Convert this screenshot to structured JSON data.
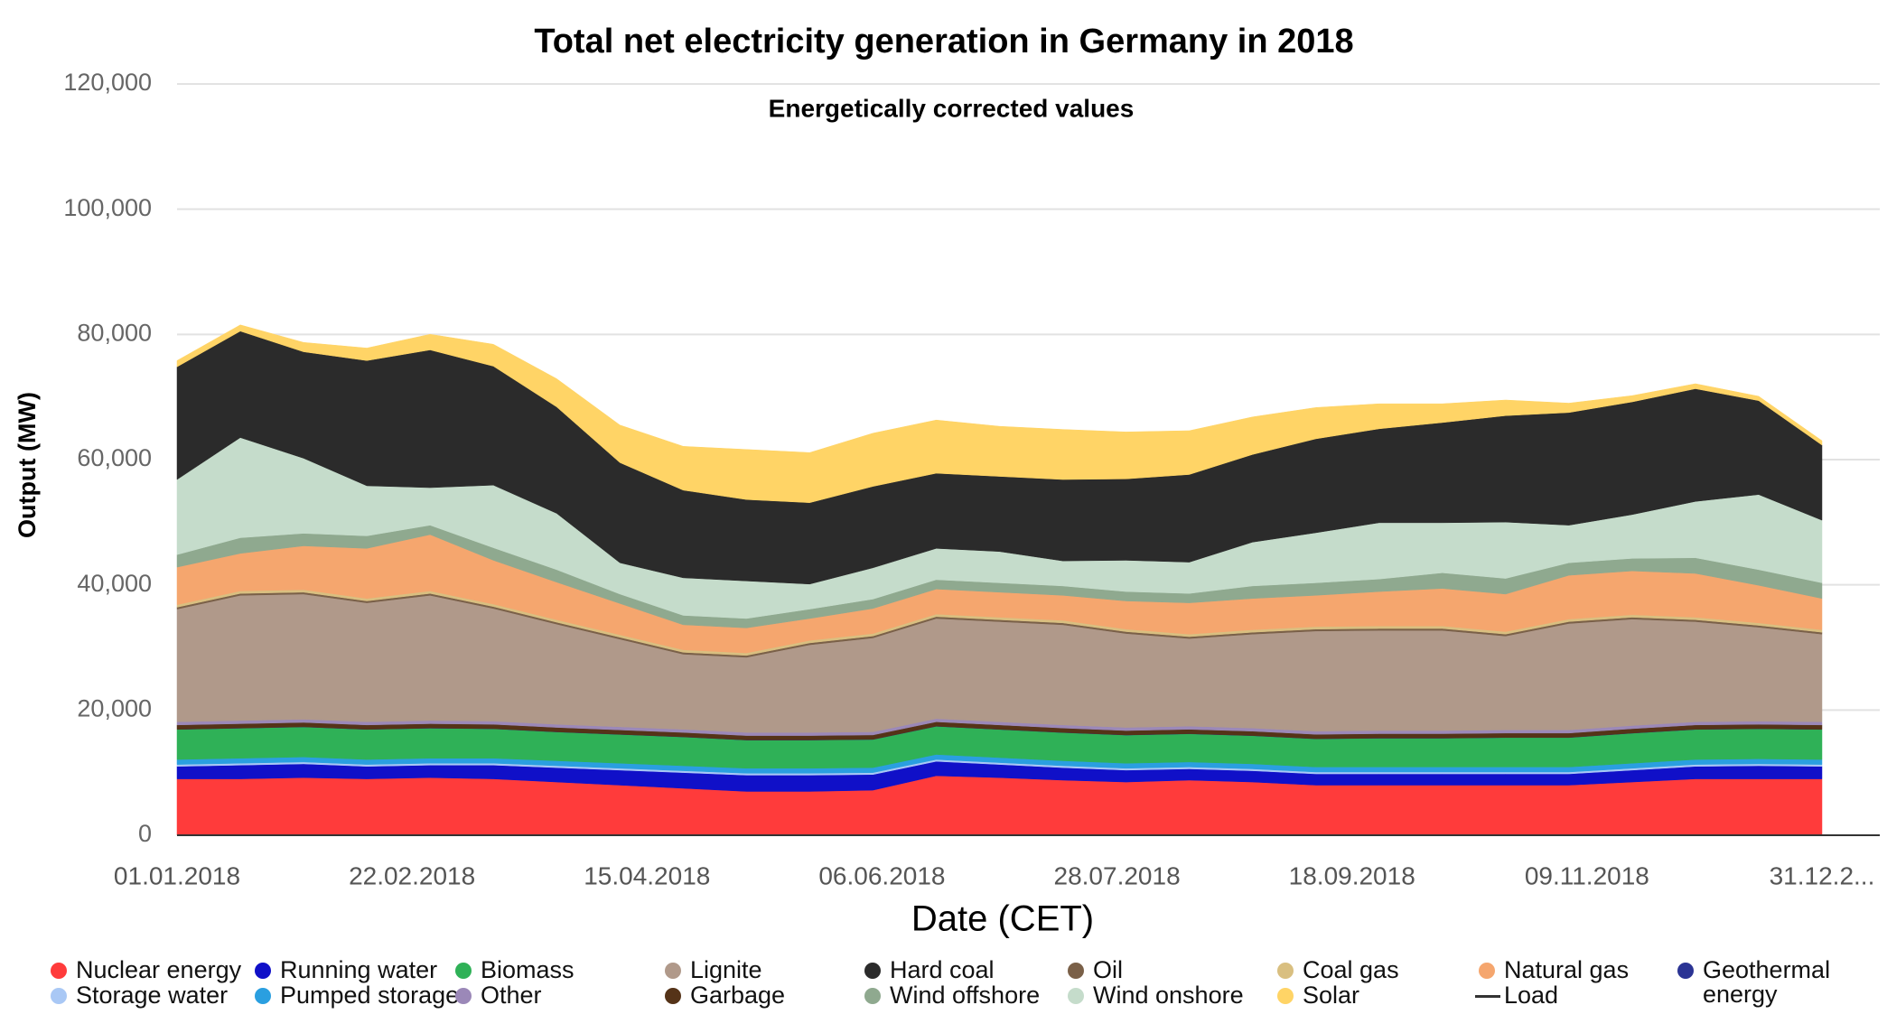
{
  "chart_data": {
    "type": "stacked_area",
    "title": "Total net electricity generation in Germany in 2018",
    "subtitle": "Energetically corrected values",
    "x_label": "Date (CET)",
    "y_label": "Output (MW)",
    "x": [
      "01.01.2018",
      "15.01.2018",
      "29.01.2018",
      "12.02.2018",
      "26.02.2018",
      "12.03.2018",
      "26.03.2018",
      "09.04.2018",
      "23.04.2018",
      "07.05.2018",
      "21.05.2018",
      "04.06.2018",
      "18.06.2018",
      "02.07.2018",
      "16.07.2018",
      "30.07.2018",
      "13.08.2018",
      "27.08.2018",
      "10.09.2018",
      "24.09.2018",
      "08.10.2018",
      "22.10.2018",
      "05.11.2018",
      "19.11.2018",
      "03.12.2018",
      "17.12.2018",
      "31.12.2018"
    ],
    "xlim": [
      "01.01.2018",
      "31.12.2018"
    ],
    "xticks": [
      "01.01.2018",
      "22.02.2018",
      "15.04.2018",
      "06.06.2018",
      "28.07.2018",
      "18.09.2018",
      "09.11.2018",
      {
        "value": "31.12.2018",
        "label": "31.12.2..."
      }
    ],
    "ylim": [
      0,
      120000
    ],
    "yticks": [
      {
        "value": 0,
        "label": "0"
      },
      {
        "value": 20000,
        "label": "20,000"
      },
      {
        "value": 40000,
        "label": "40,000"
      },
      {
        "value": 60000,
        "label": "60,000"
      },
      {
        "value": 80000,
        "label": "80,000"
      },
      {
        "value": 100000,
        "label": "100,000"
      },
      {
        "value": 120000,
        "label": "120,000"
      }
    ],
    "grid": true,
    "series": [
      {
        "name": "Nuclear energy",
        "color": "#ff3b3b",
        "values": [
          9000,
          9000,
          9200,
          9000,
          9200,
          9000,
          8500,
          8000,
          7500,
          7000,
          7000,
          7200,
          9500,
          9200,
          8800,
          8500,
          8800,
          8500,
          8000,
          8000,
          8000,
          8000,
          8000,
          8500,
          9000,
          9000,
          9000
        ]
      },
      {
        "name": "Running water",
        "color": "#1010c8",
        "values": [
          2000,
          2200,
          2200,
          2000,
          2000,
          2200,
          2300,
          2400,
          2500,
          2600,
          2600,
          2500,
          2300,
          2100,
          2000,
          1900,
          1800,
          1800,
          1800,
          1800,
          1800,
          1800,
          1800,
          1900,
          2000,
          2100,
          2000
        ]
      },
      {
        "name": "Storage water",
        "color": "#a9c8f5",
        "values": [
          300,
          300,
          300,
          300,
          300,
          300,
          300,
          300,
          300,
          300,
          300,
          300,
          300,
          300,
          300,
          300,
          300,
          300,
          300,
          300,
          300,
          300,
          300,
          300,
          300,
          300,
          300
        ]
      },
      {
        "name": "Pumped storage",
        "color": "#2a9fe0",
        "values": [
          800,
          800,
          800,
          800,
          800,
          800,
          800,
          800,
          800,
          800,
          800,
          800,
          800,
          800,
          800,
          800,
          800,
          800,
          800,
          800,
          800,
          800,
          800,
          800,
          800,
          800,
          800
        ]
      },
      {
        "name": "Biomass",
        "color": "#2fb157",
        "values": [
          4800,
          4800,
          4800,
          4800,
          4800,
          4700,
          4600,
          4600,
          4600,
          4500,
          4500,
          4500,
          4500,
          4500,
          4500,
          4500,
          4500,
          4500,
          4500,
          4600,
          4600,
          4700,
          4700,
          4800,
          4800,
          4800,
          4800
        ]
      },
      {
        "name": "Geothermal energy",
        "color": "#2b3494",
        "values": [
          20,
          20,
          20,
          20,
          20,
          20,
          20,
          20,
          20,
          20,
          20,
          20,
          20,
          20,
          20,
          20,
          20,
          20,
          20,
          20,
          20,
          20,
          20,
          20,
          20,
          20,
          20
        ]
      },
      {
        "name": "Garbage",
        "color": "#553318",
        "values": [
          700,
          700,
          700,
          700,
          700,
          700,
          700,
          700,
          700,
          700,
          700,
          700,
          700,
          700,
          700,
          700,
          700,
          700,
          700,
          700,
          700,
          700,
          700,
          700,
          700,
          700,
          700
        ]
      },
      {
        "name": "Other",
        "color": "#9b88b8",
        "values": [
          500,
          500,
          500,
          500,
          500,
          500,
          500,
          500,
          500,
          500,
          500,
          500,
          500,
          500,
          500,
          500,
          500,
          500,
          500,
          500,
          500,
          500,
          500,
          500,
          500,
          500,
          500
        ]
      },
      {
        "name": "Lignite",
        "color": "#b0998a",
        "values": [
          18000,
          20000,
          20000,
          19000,
          20000,
          18000,
          16000,
          14000,
          12000,
          12000,
          14000,
          15000,
          16000,
          16000,
          16000,
          15000,
          14000,
          15000,
          16000,
          16000,
          16000,
          15000,
          17000,
          17000,
          16000,
          15000,
          14000
        ]
      },
      {
        "name": "Oil",
        "color": "#7a6048",
        "values": [
          300,
          300,
          300,
          300,
          300,
          300,
          300,
          300,
          300,
          300,
          300,
          300,
          300,
          300,
          300,
          300,
          300,
          300,
          300,
          300,
          300,
          300,
          300,
          300,
          300,
          300,
          300
        ]
      },
      {
        "name": "Coal gas",
        "color": "#d9bf80",
        "values": [
          400,
          400,
          400,
          400,
          400,
          400,
          400,
          400,
          400,
          400,
          400,
          400,
          400,
          400,
          400,
          400,
          400,
          400,
          400,
          400,
          400,
          400,
          400,
          400,
          400,
          400,
          400
        ]
      },
      {
        "name": "Natural gas",
        "color": "#f5a66e",
        "values": [
          6000,
          6000,
          7000,
          8000,
          9000,
          7000,
          6000,
          5000,
          4000,
          4000,
          3500,
          4000,
          4000,
          4000,
          4000,
          4500,
          5000,
          5000,
          5000,
          5500,
          6000,
          6000,
          7000,
          7000,
          7000,
          6000,
          5000
        ]
      },
      {
        "name": "Wind offshore",
        "color": "#8fa98f",
        "values": [
          2000,
          2500,
          2000,
          2000,
          1500,
          2000,
          2000,
          1500,
          1500,
          1500,
          1500,
          1500,
          1500,
          1500,
          1500,
          1500,
          1500,
          2000,
          2000,
          2000,
          2500,
          2500,
          2000,
          2000,
          2500,
          2500,
          2500
        ]
      },
      {
        "name": "Wind onshore",
        "color": "#c5dccb",
        "values": [
          12000,
          16000,
          12000,
          8000,
          6000,
          10000,
          9000,
          5000,
          6000,
          6000,
          4000,
          5000,
          5000,
          5000,
          4000,
          5000,
          5000,
          7000,
          8000,
          9000,
          8000,
          9000,
          6000,
          7000,
          9000,
          12000,
          10000
        ]
      },
      {
        "name": "Hard coal",
        "color": "#2b2b2b",
        "values": [
          18000,
          17000,
          17000,
          20000,
          22000,
          19000,
          17000,
          16000,
          14000,
          13000,
          13000,
          13000,
          12000,
          12000,
          13000,
          13000,
          14000,
          14000,
          15000,
          15000,
          16000,
          17000,
          18000,
          18000,
          18000,
          15000,
          12000
        ]
      },
      {
        "name": "Solar",
        "color": "#ffd466",
        "values": [
          1000,
          1000,
          1500,
          2000,
          2500,
          3500,
          4500,
          6000,
          7000,
          8000,
          8000,
          8500,
          8500,
          8000,
          8000,
          7500,
          7000,
          6000,
          5000,
          4000,
          3000,
          2500,
          1500,
          1000,
          800,
          700,
          700
        ]
      },
      {
        "name": "Load",
        "color": "#333333",
        "style": "line",
        "values": [
          null,
          null,
          null,
          null,
          null,
          null,
          null,
          null,
          null,
          null,
          null,
          null,
          null,
          null,
          null,
          null,
          null,
          null,
          null,
          null,
          null,
          null,
          null,
          null,
          null,
          null,
          null
        ]
      }
    ]
  }
}
